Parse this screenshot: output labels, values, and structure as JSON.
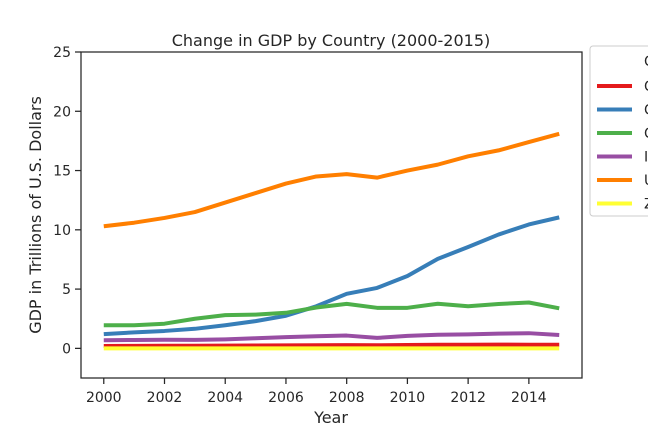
{
  "chart_data": {
    "type": "line",
    "title": "Change in GDP by Country (2000-2015)",
    "xlabel": "Year",
    "ylabel": "GDP in Trillions of U.S. Dollars",
    "xlim": [
      1999.25,
      2015.75
    ],
    "ylim": [
      -2.5,
      25
    ],
    "x_ticks": [
      "2000",
      "2002",
      "2004",
      "2006",
      "2008",
      "2010",
      "2012",
      "2014"
    ],
    "y_ticks": [
      "0",
      "5",
      "10",
      "15",
      "20",
      "25"
    ],
    "legend_placement": "outside-right",
    "legend_title": "C",
    "x": [
      2000,
      2001,
      2002,
      2003,
      2004,
      2005,
      2006,
      2007,
      2008,
      2009,
      2010,
      2011,
      2012,
      2013,
      2014,
      2015
    ],
    "series": [
      {
        "name": "C",
        "color": "#e41a1c",
        "values": [
          0.2,
          0.21,
          0.22,
          0.22,
          0.23,
          0.24,
          0.25,
          0.26,
          0.27,
          0.26,
          0.28,
          0.3,
          0.31,
          0.32,
          0.31,
          0.3
        ]
      },
      {
        "name": "C",
        "color": "#377eb8",
        "values": [
          1.2,
          1.35,
          1.47,
          1.65,
          1.95,
          2.3,
          2.75,
          3.55,
          4.6,
          5.1,
          6.1,
          7.55,
          8.55,
          9.6,
          10.45,
          11.05
        ]
      },
      {
        "name": "C",
        "color": "#4daf4a",
        "values": [
          1.95,
          1.95,
          2.08,
          2.5,
          2.8,
          2.85,
          3.0,
          3.45,
          3.75,
          3.42,
          3.42,
          3.76,
          3.55,
          3.74,
          3.87,
          3.38
        ]
      },
      {
        "name": "I",
        "color": "#984ea3",
        "values": [
          0.68,
          0.71,
          0.73,
          0.72,
          0.76,
          0.85,
          0.95,
          1.02,
          1.08,
          0.88,
          1.05,
          1.15,
          1.18,
          1.24,
          1.28,
          1.13
        ]
      },
      {
        "name": "U",
        "color": "#ff7f00",
        "values": [
          10.3,
          10.6,
          11.0,
          11.5,
          12.3,
          13.1,
          13.9,
          14.5,
          14.7,
          14.4,
          15.0,
          15.5,
          16.2,
          16.7,
          17.4,
          18.1
        ]
      },
      {
        "name": "Z",
        "color": "#ffff33",
        "values": [
          0.0,
          0.0,
          0.0,
          0.0,
          0.0,
          0.0,
          0.0,
          0.0,
          0.0,
          0.0,
          0.0,
          0.0,
          0.0,
          0.0,
          0.0,
          0.0
        ]
      }
    ]
  }
}
